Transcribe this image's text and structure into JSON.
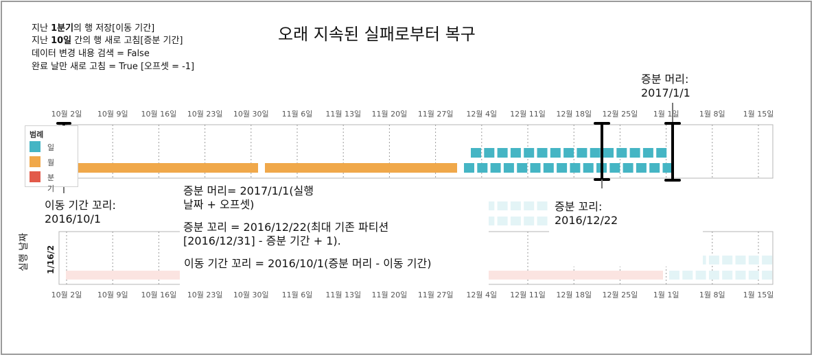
{
  "title": "오래 지속된 실패로부터 복구",
  "info_lines": [
    {
      "pre": "지난 ",
      "bold": "1분기",
      "post": "의 행 저장[이동 기간]"
    },
    {
      "pre": "지난 ",
      "bold": "10일",
      "post": " 간의 행 새로 고침[증분 기간]"
    },
    {
      "pre": "데이터 변경 내용 검색 = False",
      "bold": "",
      "post": ""
    },
    {
      "pre": "완료 날만 새로 고침 = True [오프셋 = -1]",
      "bold": "",
      "post": ""
    }
  ],
  "axis_ticks": [
    "10월 2일",
    "10월 9일",
    "10월 16일",
    "10월 23일",
    "10월 30일",
    "11월 6일",
    "11월 13일",
    "11월 20일",
    "11월 27일",
    "12월 4일",
    "12월 11일",
    "12월 18일",
    "12월 25일",
    "1월 1일",
    "1월 8일",
    "1월 15일"
  ],
  "y_axis_label": "실행 날짜",
  "y_tick_label": "1/16/2",
  "legend": {
    "title": "범례",
    "items": [
      {
        "label": "일",
        "color": "#45b5c4"
      },
      {
        "label": "월",
        "color": "#f0a84a"
      },
      {
        "label": "분기",
        "color": "#e25a4a"
      }
    ]
  },
  "annotations": {
    "incremental_head_top": [
      "증분 머리:",
      "2017/1/1"
    ],
    "rolling_tail": [
      "이동 기간 꼬리:",
      "2016/10/1"
    ],
    "incremental_tail": [
      "증분 꼬리:",
      "2016/12/22"
    ],
    "head_formula": [
      "증분 머리= 2017/1/1(실행",
      "날짜 + 오프셋)"
    ],
    "tail_formula": [
      "증분 꼬리 = 2016/12/22(최대 기존 파티션",
      "[2016/12/31] - 증분 기간 + 1)."
    ],
    "rolling_formula": [
      "이동 기간 꼬리 = 2016/10/1(증분 머리 - 이동 기간)"
    ]
  },
  "colors": {
    "day": "#45b5c4",
    "month": "#f0a84a",
    "quarter": "#e25a4a",
    "grid": "#9a9a9a"
  }
}
